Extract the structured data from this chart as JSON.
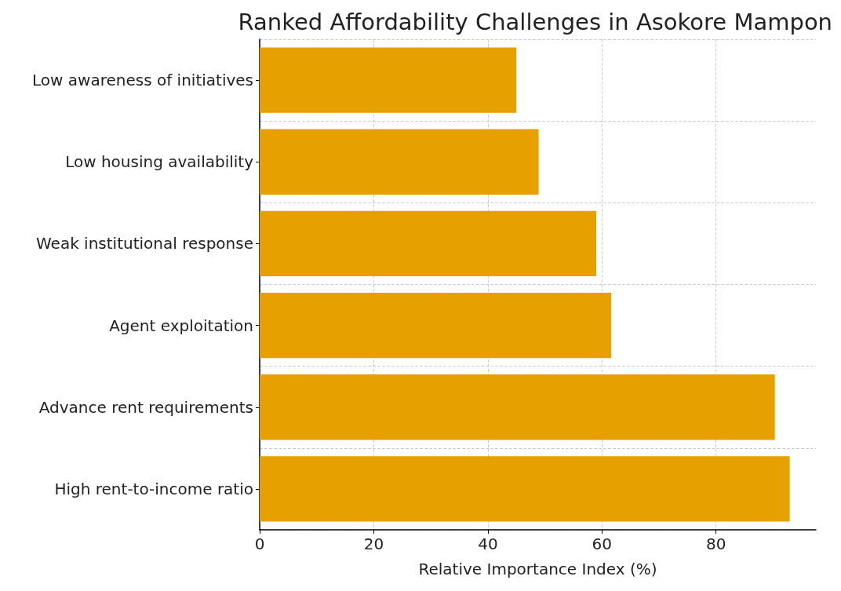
{
  "chart_data": {
    "type": "bar",
    "orientation": "horizontal",
    "title": "Ranked Affordability Challenges in Asokore Mampon",
    "xlabel": "Relative Importance Index (%)",
    "categories": [
      "Low awareness of initiatives",
      "Low housing availability",
      "Weak institutional response",
      "Agent exploitation",
      "Advance rent requirements",
      "High rent-to-income ratio"
    ],
    "values": [
      45,
      48.9,
      59,
      61.6,
      90.3,
      92.9
    ],
    "color": "#e6a000",
    "xlim": [
      0,
      97.5
    ],
    "xticks": [
      0,
      20,
      40,
      60,
      80
    ],
    "grid": true
  }
}
